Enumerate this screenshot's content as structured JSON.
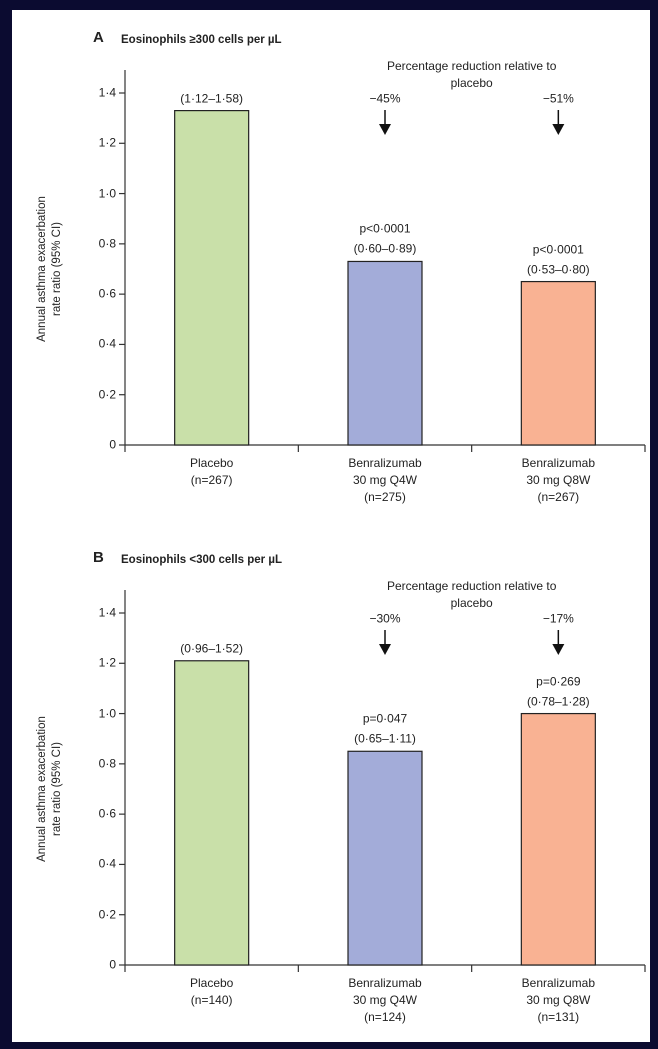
{
  "chart_data": [
    {
      "type": "bar",
      "panel": "A",
      "title": "Eosinophils ≥300 cells per µL",
      "ylabel": "Annual asthma exacerbation\nrate ratio (95% CI)",
      "annotation_title": "Percentage reduction relative to placebo",
      "reductions": [
        "−45%",
        "−51%"
      ],
      "categories": [
        "Placebo\n(n=267)",
        "Benralizumab\n30 mg Q4W\n(n=275)",
        "Benralizumab\n30 mg Q8W\n(n=267)"
      ],
      "values": [
        1.33,
        0.73,
        0.65
      ],
      "colors": [
        "#c9e0a9",
        "#a3acd9",
        "#f9b293"
      ],
      "bar_notes": [
        [
          "(1·12–1·58)"
        ],
        [
          "p<0·0001",
          "(0·60–0·89)"
        ],
        [
          "p<0·0001",
          "(0·53–0·80)"
        ]
      ],
      "ylim": [
        0,
        1.4
      ],
      "yticks": [
        0,
        {
          "value": 0.2,
          "label": "0·2"
        },
        {
          "value": 0.4,
          "label": "0·4"
        },
        {
          "value": 0.6,
          "label": "0·6"
        },
        {
          "value": 0.8,
          "label": "0·8"
        },
        {
          "value": 1.0,
          "label": "1·0"
        },
        {
          "value": 1.2,
          "label": "1·2"
        },
        {
          "value": 1.4,
          "label": "1·4"
        }
      ]
    },
    {
      "type": "bar",
      "panel": "B",
      "title": "Eosinophils <300 cells per µL",
      "ylabel": "Annual asthma exacerbation\nrate ratio (95% CI)",
      "annotation_title": "Percentage reduction relative to placebo",
      "reductions": [
        "−30%",
        "−17%"
      ],
      "categories": [
        "Placebo\n(n=140)",
        "Benralizumab\n30 mg Q4W\n(n=124)",
        "Benralizumab\n30 mg Q8W\n(n=131)"
      ],
      "values": [
        1.21,
        0.85,
        1.0
      ],
      "colors": [
        "#c9e0a9",
        "#a3acd9",
        "#f9b293"
      ],
      "bar_notes": [
        [
          "(0·96–1·52)"
        ],
        [
          "p=0·047",
          "(0·65–1·11)"
        ],
        [
          "p=0·269",
          "(0·78–1·28)"
        ]
      ],
      "ylim": [
        0,
        1.4
      ],
      "yticks": [
        0,
        {
          "value": 0.2,
          "label": "0·2"
        },
        {
          "value": 0.4,
          "label": "0·4"
        },
        {
          "value": 0.6,
          "label": "0·6"
        },
        {
          "value": 0.8,
          "label": "0·8"
        },
        {
          "value": 1.0,
          "label": "1·0"
        },
        {
          "value": 1.2,
          "label": "1·2"
        },
        {
          "value": 1.4,
          "label": "1·4"
        }
      ]
    }
  ]
}
